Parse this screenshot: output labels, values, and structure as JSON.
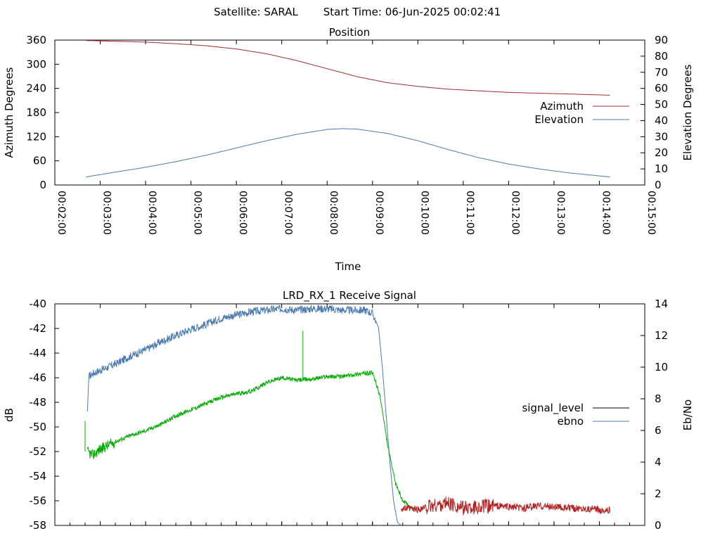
{
  "header": {
    "satellite": "Satellite: SARAL",
    "start_time": "Start Time: 06-Jun-2025 00:02:41"
  },
  "colors": {
    "azimuth": "#a52a2a",
    "elevation": "#4a7ab0",
    "signal_level_legend": "#000000",
    "ebno_legend": "#4a7ab0",
    "green_trace": "#00aa00",
    "red_trace": "#b22222",
    "axis": "#000000",
    "grid": "#000000"
  },
  "chart_data": [
    {
      "type": "line",
      "title": "Position",
      "xlabel": "Time",
      "ylabel": "Azimuth Degrees",
      "y2label": "Elevation Degrees",
      "xlim": [
        120,
        900
      ],
      "ylim": [
        0,
        360
      ],
      "y2lim": [
        0,
        90
      ],
      "x_ticks": [
        120,
        180,
        240,
        300,
        360,
        420,
        480,
        540,
        600,
        660,
        720,
        780,
        840,
        900
      ],
      "x_tick_labels": [
        "00:02:00",
        "00:03:00",
        "00:04:00",
        "00:05:00",
        "00:06:00",
        "00:07:00",
        "00:08:00",
        "00:09:00",
        "00:10:00",
        "00:11:00",
        "00:12:00",
        "00:13:00",
        "00:14:00",
        "00:15:00"
      ],
      "y_ticks": [
        0,
        60,
        120,
        180,
        240,
        300,
        360
      ],
      "y_tick_labels": [
        "0",
        "60",
        "120",
        "180",
        "240",
        "300",
        "360"
      ],
      "y2_ticks": [
        0,
        10,
        20,
        30,
        40,
        50,
        60,
        70,
        80,
        90
      ],
      "y2_tick_labels": [
        "0",
        "10",
        "20",
        "30",
        "40",
        "50",
        "60",
        "70",
        "80",
        "90"
      ],
      "legend": "right",
      "series": [
        {
          "name": "Azimuth",
          "axis": "y",
          "x": [
            161,
            200,
            240,
            280,
            320,
            360,
            400,
            440,
            480,
            500,
            520,
            560,
            600,
            640,
            680,
            720,
            760,
            800,
            854
          ],
          "values": [
            359,
            357,
            355,
            351,
            346,
            338,
            326,
            309,
            289,
            279,
            269,
            254,
            245,
            238,
            234,
            230,
            228,
            226,
            223
          ]
        },
        {
          "name": "Elevation",
          "axis": "y2",
          "x": [
            161,
            200,
            240,
            280,
            320,
            360,
            400,
            440,
            480,
            500,
            520,
            560,
            600,
            640,
            680,
            720,
            760,
            800,
            854
          ],
          "values": [
            5,
            8,
            11,
            14.5,
            18.5,
            23,
            27.5,
            31.5,
            34.5,
            35,
            34.7,
            32,
            27.5,
            22,
            17,
            13,
            10,
            7.5,
            5
          ]
        }
      ]
    },
    {
      "type": "line",
      "title": "LRD_RX_1 Receive Signal",
      "ylabel": "dB",
      "y2label": "Eb/No",
      "xlim": [
        120,
        900
      ],
      "ylim": [
        -58,
        -40
      ],
      "y2lim": [
        0,
        14
      ],
      "x_ticks": [
        120,
        180,
        240,
        300,
        360,
        420,
        480,
        540,
        600,
        660,
        720,
        780,
        840,
        900
      ],
      "y_ticks": [
        -58,
        -56,
        -54,
        -52,
        -50,
        -48,
        -46,
        -44,
        -42,
        -40
      ],
      "y_tick_labels": [
        "-58",
        "-56",
        "-54",
        "-52",
        "-50",
        "-48",
        "-46",
        "-44",
        "-42",
        "-40"
      ],
      "y2_ticks": [
        0,
        2,
        4,
        6,
        8,
        10,
        12,
        14
      ],
      "y2_tick_labels": [
        "0",
        "2",
        "4",
        "6",
        "8",
        "10",
        "12",
        "14"
      ],
      "legend": "right",
      "series": [
        {
          "name": "signal_level",
          "axis": "y",
          "color": "green",
          "x": [
            163,
            170,
            180,
            200,
            220,
            240,
            260,
            280,
            300,
            320,
            340,
            360,
            380,
            400,
            420,
            440,
            460,
            480,
            500,
            520,
            540,
            550,
            560,
            570,
            580,
            590,
            595
          ],
          "values": [
            -52,
            -52.3,
            -51.8,
            -51.2,
            -50.7,
            -50.3,
            -49.8,
            -49.1,
            -48.6,
            -48.1,
            -47.6,
            -47.3,
            -47.1,
            -46.4,
            -46,
            -46.2,
            -46.1,
            -45.9,
            -45.9,
            -45.7,
            -45.6,
            -47.5,
            -51.5,
            -54.5,
            -56,
            -56.5,
            -56.8
          ],
          "annotations": [
            {
              "x": 160,
              "value": -49.5
            },
            {
              "x": 448,
              "value": -42.2
            }
          ]
        },
        {
          "name": "ebno",
          "axis": "y2",
          "color": "blue",
          "x": [
            163,
            165,
            170,
            180,
            200,
            220,
            240,
            260,
            280,
            300,
            320,
            340,
            360,
            380,
            400,
            420,
            440,
            460,
            480,
            500,
            520,
            530,
            540,
            548,
            553,
            558,
            563,
            568,
            573,
            578
          ],
          "values": [
            7.2,
            9.4,
            9.6,
            9.8,
            10.2,
            10.7,
            11.1,
            11.6,
            12,
            12.4,
            12.7,
            13.1,
            13.3,
            13.5,
            13.6,
            13.7,
            13.6,
            13.7,
            13.7,
            13.6,
            13.6,
            13.6,
            13.4,
            12.5,
            10,
            7,
            4,
            1.5,
            0.2,
            0
          ]
        },
        {
          "name": "",
          "axis": "y",
          "color": "red",
          "x": [
            578,
            600,
            620,
            640,
            660,
            680,
            700,
            720,
            740,
            760,
            780,
            800,
            820,
            854
          ],
          "values": [
            -56.6,
            -56.7,
            -56.4,
            -56.2,
            -56.6,
            -56.5,
            -56.4,
            -56.5,
            -56.6,
            -56.4,
            -56.5,
            -56.6,
            -56.6,
            -56.8
          ]
        }
      ]
    }
  ]
}
